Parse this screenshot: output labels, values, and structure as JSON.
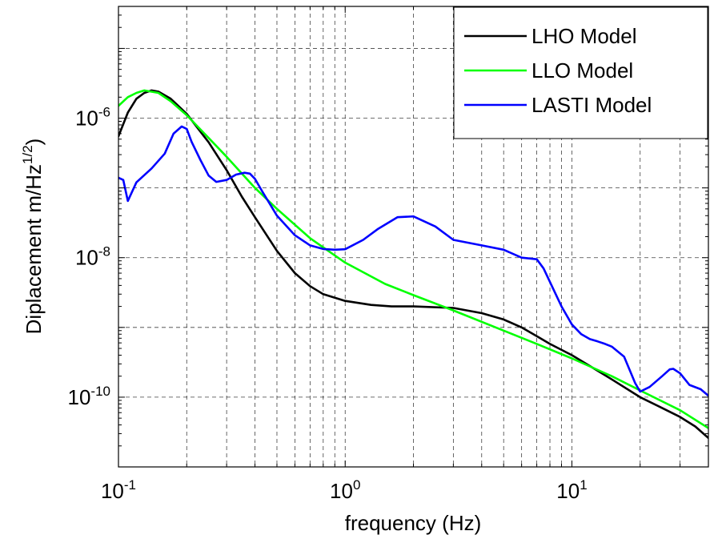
{
  "chart_data": {
    "type": "line",
    "xlabel": "frequency (Hz)",
    "ylabel": "Diplacement m/Hz",
    "ylabel_superscript": "1/2",
    "ylabel_close": ")",
    "x_scale": "log",
    "y_scale": "log",
    "xlim": [
      0.1,
      40
    ],
    "ylim": [
      1e-11,
      4e-05
    ],
    "grid": true,
    "grid_style": "dashed",
    "legend_position": "top-right",
    "x_ticks": [
      {
        "value": 0.1,
        "base": "10",
        "exp": "-1"
      },
      {
        "value": 1,
        "base": "10",
        "exp": "0"
      },
      {
        "value": 10,
        "base": "10",
        "exp": "1"
      }
    ],
    "y_ticks": [
      {
        "value": 1e-10,
        "base": "10",
        "exp": "-10"
      },
      {
        "value": 1e-08,
        "base": "10",
        "exp": "-8"
      },
      {
        "value": 1e-06,
        "base": "10",
        "exp": "-6"
      }
    ],
    "series": [
      {
        "name": "LHO Model",
        "color": "#000000",
        "x": [
          0.1,
          0.11,
          0.12,
          0.13,
          0.14,
          0.15,
          0.17,
          0.2,
          0.25,
          0.3,
          0.35,
          0.4,
          0.5,
          0.6,
          0.7,
          0.8,
          1.0,
          1.3,
          1.6,
          2.0,
          3.0,
          4.0,
          5.0,
          6.0,
          7.0,
          8.0,
          10,
          12,
          15,
          20,
          25,
          30,
          35,
          40
        ],
        "y": [
          5.5e-07,
          1.2e-06,
          1.9e-06,
          2.3e-06,
          2.5e-06,
          2.4e-06,
          1.9e-06,
          1.15e-06,
          4.5e-07,
          1.8e-07,
          7.5e-08,
          3.8e-08,
          1.25e-08,
          6e-09,
          3.9e-09,
          3e-09,
          2.4e-09,
          2.1e-09,
          2e-09,
          2e-09,
          1.9e-09,
          1.6e-09,
          1.3e-09,
          1e-09,
          7.5e-10,
          5.8e-10,
          4e-10,
          2.8e-10,
          1.8e-10,
          1e-10,
          7e-11,
          5.2e-11,
          3.8e-11,
          2.6e-11
        ]
      },
      {
        "name": "LLO Model",
        "color": "#00ff00",
        "x": [
          0.1,
          0.11,
          0.12,
          0.13,
          0.15,
          0.17,
          0.2,
          0.25,
          0.3,
          0.4,
          0.5,
          0.7,
          1.0,
          1.5,
          2.0,
          3.0,
          5.0,
          7.0,
          10,
          15,
          20,
          30,
          40
        ],
        "y": [
          1.5e-06,
          2e-06,
          2.3e-06,
          2.5e-06,
          2.3e-06,
          1.75e-06,
          1.1e-06,
          5.2e-07,
          2.8e-07,
          1e-07,
          5e-08,
          1.9e-08,
          8.5e-09,
          4.2e-09,
          2.9e-09,
          1.75e-09,
          9e-10,
          5.8e-10,
          3.6e-10,
          2e-10,
          1.25e-10,
          6.5e-11,
          3.6e-11
        ]
      },
      {
        "name": "LASTI Model",
        "color": "#0000ff",
        "x": [
          0.1,
          0.105,
          0.11,
          0.12,
          0.14,
          0.16,
          0.175,
          0.19,
          0.2,
          0.21,
          0.23,
          0.25,
          0.27,
          0.3,
          0.33,
          0.36,
          0.38,
          0.4,
          0.43,
          0.5,
          0.6,
          0.7,
          0.8,
          0.9,
          1.0,
          1.2,
          1.4,
          1.7,
          2.0,
          2.5,
          3.0,
          4.0,
          5.0,
          6.0,
          7.0,
          7.5,
          8.0,
          9.0,
          10,
          11,
          12,
          13,
          14,
          15,
          17,
          19,
          20,
          22,
          25,
          27,
          28,
          30,
          33,
          37,
          40
        ],
        "y": [
          1.4e-07,
          1.3e-07,
          6.5e-08,
          1.2e-07,
          1.9e-07,
          3.1e-07,
          6e-07,
          7.6e-07,
          7e-07,
          4.6e-07,
          2.5e-07,
          1.5e-07,
          1.22e-07,
          1.3e-07,
          1.55e-07,
          1.65e-07,
          1.6e-07,
          1.35e-07,
          9e-08,
          4e-08,
          2.1e-08,
          1.5e-08,
          1.33e-08,
          1.3e-08,
          1.32e-08,
          1.8e-08,
          2.6e-08,
          3.8e-08,
          3.9e-08,
          2.8e-08,
          1.8e-08,
          1.5e-08,
          1.3e-08,
          1e-08,
          9.5e-09,
          7e-09,
          4.5e-09,
          2e-09,
          1.1e-09,
          8e-10,
          6.8e-10,
          6.3e-10,
          5.8e-10,
          5.3e-10,
          3.8e-10,
          1.6e-10,
          1.2e-10,
          1.4e-10,
          2e-10,
          2.5e-10,
          2.55e-10,
          2.2e-10,
          1.5e-10,
          1.3e-10,
          1.05e-10
        ]
      }
    ]
  }
}
